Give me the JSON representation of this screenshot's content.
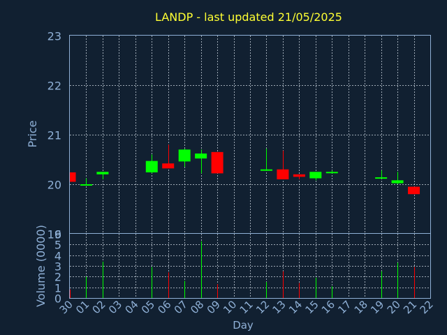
{
  "chart_data": [
    {
      "type": "candlestick",
      "title": "LANDP - last updated 21/05/2025",
      "ylabel": "Price",
      "xlabel": "",
      "ylim": [
        19,
        23
      ],
      "yticks": [
        "19",
        "20",
        "21",
        "22",
        "23"
      ],
      "grid": true,
      "categories": [
        "30",
        "01",
        "02",
        "05",
        "06",
        "07",
        "08",
        "09",
        "12",
        "13",
        "14",
        "15",
        "16",
        "19",
        "20",
        "21"
      ],
      "x_index": [
        0,
        1,
        2,
        5,
        6,
        7,
        8,
        9,
        12,
        13,
        14,
        15,
        16,
        19,
        20,
        21
      ],
      "open": [
        20.24,
        20.0,
        20.2,
        20.24,
        20.42,
        20.46,
        20.52,
        20.65,
        20.3,
        20.3,
        20.2,
        20.12,
        20.25,
        20.12,
        20.02,
        19.95
      ],
      "high": [
        20.24,
        20.12,
        20.25,
        20.6,
        20.8,
        20.72,
        20.7,
        20.65,
        20.72,
        20.68,
        20.2,
        20.25,
        20.28,
        20.28,
        20.25,
        19.95
      ],
      "low": [
        20.05,
        19.98,
        20.1,
        20.22,
        20.32,
        20.35,
        20.22,
        20.22,
        20.27,
        20.1,
        20.1,
        20.08,
        20.22,
        20.12,
        20.0,
        19.8
      ],
      "close": [
        20.05,
        20.0,
        20.25,
        20.47,
        20.32,
        20.7,
        20.62,
        20.22,
        20.3,
        20.1,
        20.15,
        20.25,
        20.25,
        20.14,
        20.08,
        19.8
      ]
    },
    {
      "type": "bar",
      "ylabel": "Volume (0000)",
      "xlabel": "Day",
      "ylim": [
        0,
        6
      ],
      "yticks": [
        "0",
        "1",
        "2",
        "3",
        "4",
        "5",
        "6"
      ],
      "x_ticks": [
        "30",
        "01",
        "02",
        "03",
        "04",
        "05",
        "06",
        "07",
        "08",
        "09",
        "10",
        "11",
        "12",
        "13",
        "14",
        "15",
        "16",
        "17",
        "18",
        "19",
        "20",
        "21",
        "22"
      ],
      "categories": [
        "30",
        "01",
        "02",
        "05",
        "06",
        "07",
        "08",
        "09",
        "12",
        "13",
        "14",
        "15",
        "16",
        "19",
        "20",
        "21"
      ],
      "x_index": [
        0,
        1,
        2,
        5,
        6,
        7,
        8,
        9,
        12,
        13,
        14,
        15,
        16,
        19,
        20,
        21
      ],
      "values": [
        0.8,
        2.0,
        3.4,
        2.9,
        2.4,
        1.6,
        5.3,
        1.3,
        1.5,
        2.5,
        1.4,
        1.9,
        1.1,
        2.5,
        3.3,
        2.9
      ],
      "grid": true
    }
  ],
  "colors": {
    "up": "#00ff00",
    "down": "#ff0000",
    "axis": "#8fb0d6",
    "grid": "#cfd8e3",
    "title": "#ffff33",
    "background": "#112031"
  }
}
